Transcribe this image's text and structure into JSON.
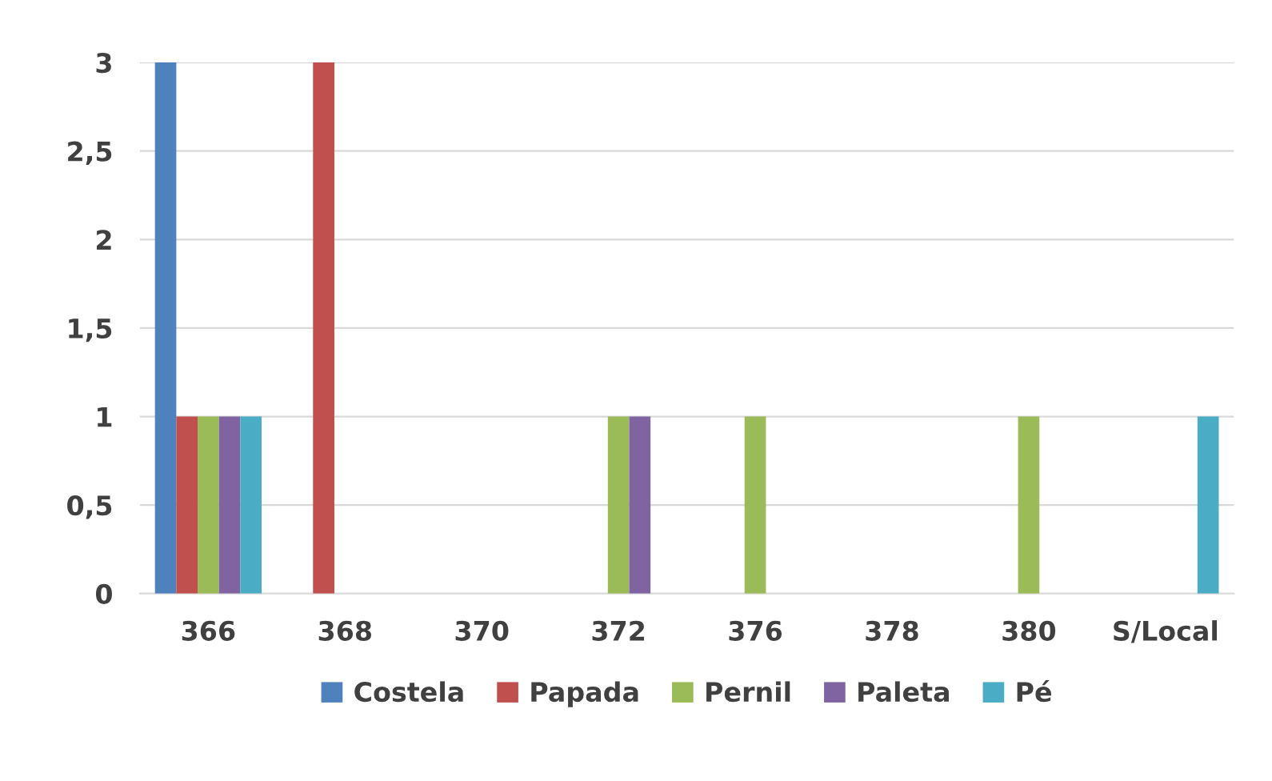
{
  "chart_data": {
    "type": "bar",
    "categories": [
      "366",
      "368",
      "370",
      "372",
      "376",
      "378",
      "380",
      "S/Local"
    ],
    "series": [
      {
        "name": "Costela",
        "color": "#4f81bd",
        "values": [
          3,
          0,
          0,
          0,
          0,
          0,
          0,
          0
        ]
      },
      {
        "name": "Papada",
        "color": "#c0504d",
        "values": [
          1,
          3,
          0,
          0,
          0,
          0,
          0,
          0
        ]
      },
      {
        "name": "Pernil",
        "color": "#9bbb59",
        "values": [
          1,
          0,
          0,
          1,
          1,
          0,
          1,
          0
        ]
      },
      {
        "name": "Paleta",
        "color": "#8064a2",
        "values": [
          1,
          0,
          0,
          1,
          0,
          0,
          0,
          0
        ]
      },
      {
        "name": "Pé",
        "color": "#4bacc6",
        "values": [
          1,
          0,
          0,
          0,
          0,
          0,
          0,
          1
        ]
      }
    ],
    "ylim": [
      0,
      3
    ],
    "yticks": [
      0,
      {
        "value": 0.5,
        "label": "0,5"
      },
      1,
      {
        "value": 1.5,
        "label": "1,5"
      },
      2,
      {
        "value": 2.5,
        "label": "2,5"
      },
      3
    ],
    "grid": "y",
    "legend": "bottom"
  }
}
